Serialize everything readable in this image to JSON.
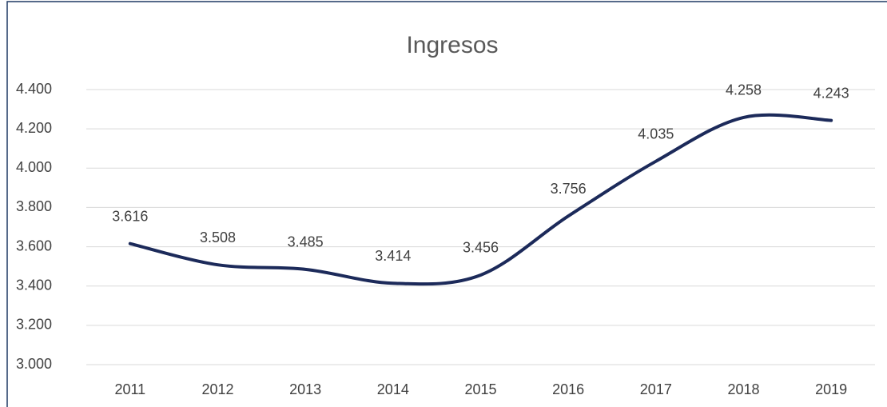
{
  "chart_data": {
    "type": "line",
    "title": "Ingresos",
    "categories": [
      "2011",
      "2012",
      "2013",
      "2014",
      "2015",
      "2016",
      "2017",
      "2018",
      "2019"
    ],
    "series": [
      {
        "name": "Ingresos",
        "color": "#1c2a5a",
        "values": [
          3616,
          3508,
          3485,
          3414,
          3456,
          3756,
          4035,
          4258,
          4243
        ],
        "value_labels": [
          "3.616",
          "3.508",
          "3.485",
          "3.414",
          "3.456",
          "3.756",
          "4.035",
          "4.258",
          "4.243"
        ]
      }
    ],
    "ylim": [
      3000,
      4400
    ],
    "yticks": [
      {
        "value": 3000,
        "label": "3.000"
      },
      {
        "value": 3200,
        "label": "3.200"
      },
      {
        "value": 3400,
        "label": "3.400"
      },
      {
        "value": 3600,
        "label": "3.600"
      },
      {
        "value": 3800,
        "label": "3.800"
      },
      {
        "value": 4000,
        "label": "4.000"
      },
      {
        "value": 4200,
        "label": "4.200"
      },
      {
        "value": 4400,
        "label": "4.400"
      }
    ],
    "grid": true
  }
}
